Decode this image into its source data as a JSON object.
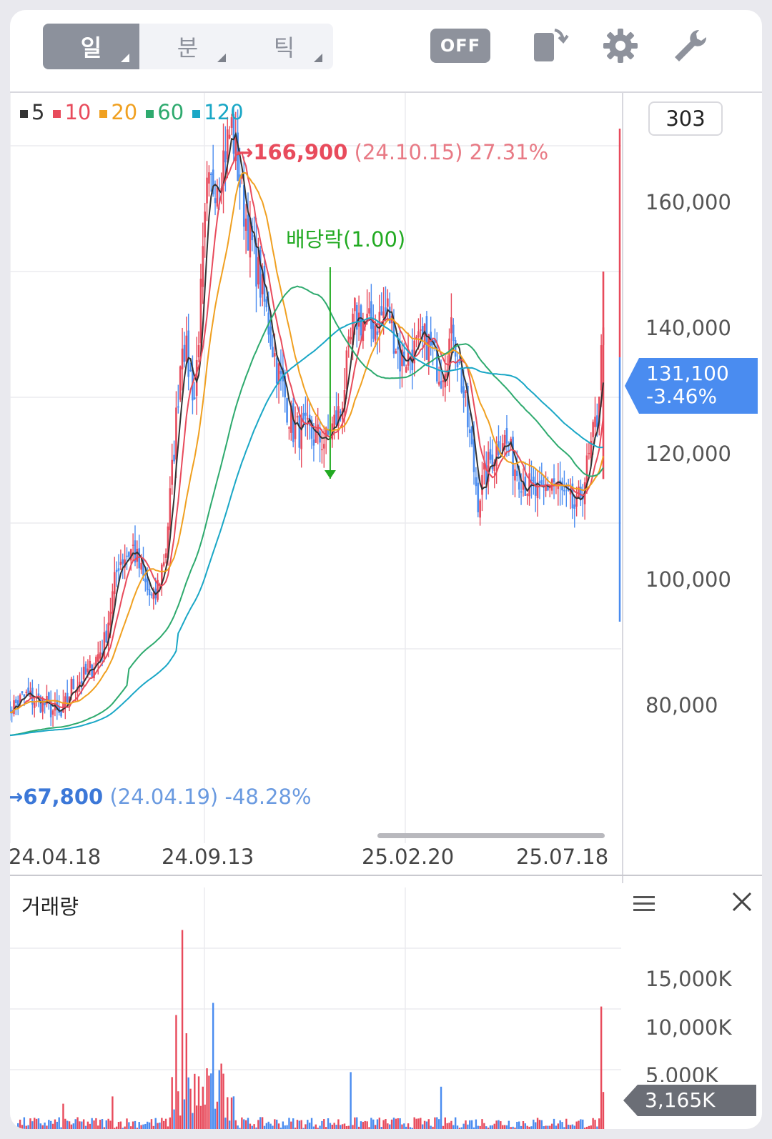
{
  "toolbar": {
    "periods": [
      {
        "label": "일",
        "active": true
      },
      {
        "label": "분",
        "active": false
      },
      {
        "label": "틱",
        "active": false
      }
    ],
    "off_label": "OFF",
    "icons": [
      "rotate-screen-icon",
      "gear-icon",
      "wrench-icon"
    ]
  },
  "legend": [
    {
      "label": "5",
      "color": "#333333"
    },
    {
      "label": "10",
      "color": "#e84b5c"
    },
    {
      "label": "20",
      "color": "#f0a020"
    },
    {
      "label": "60",
      "color": "#2eaa6e"
    },
    {
      "label": "120",
      "color": "#1aa7c6"
    }
  ],
  "count": "303",
  "annotations": {
    "high": {
      "arrow": "→",
      "value": "166,900",
      "date": "(24.10.15)",
      "pct": "27.31%"
    },
    "low": {
      "arrow": "→",
      "value": "67,800",
      "date": "(24.04.19)",
      "pct": "-48.28%"
    },
    "dividend": "배당락(1.00)"
  },
  "current": {
    "price": "131,100",
    "change": "-3.46%"
  },
  "y_ticks": [
    "160,000",
    "140,000",
    "120,000",
    "100,000",
    "80,000"
  ],
  "x_ticks": [
    "24.04.18",
    "24.09.13",
    "25.02.20",
    "25.07.18"
  ],
  "volume": {
    "title": "거래량",
    "ticks": [
      "15,000K",
      "10,000K",
      "5,000K"
    ],
    "current": "3,165K"
  },
  "colors": {
    "up": "#e84b5c",
    "down": "#4a8cf0",
    "grid": "#ebebef",
    "dividend": "#22aa22"
  },
  "chart_data": {
    "type": "candlestick",
    "ylim": [
      60000,
      175000
    ],
    "ma_periods": [
      5,
      10,
      20,
      60,
      120
    ],
    "x_dates": [
      "24.04.18",
      "24.09.13",
      "25.02.20",
      "25.07.18"
    ],
    "price_anchors": [
      [
        0,
        70000
      ],
      [
        10,
        72500
      ],
      [
        20,
        71000
      ],
      [
        27,
        69000
      ],
      [
        32,
        74000
      ],
      [
        40,
        76000
      ],
      [
        48,
        81000
      ],
      [
        55,
        94000
      ],
      [
        62,
        96000
      ],
      [
        68,
        90000
      ],
      [
        72,
        87000
      ],
      [
        78,
        96000
      ],
      [
        82,
        112000
      ],
      [
        86,
        130000
      ],
      [
        92,
        120000
      ],
      [
        98,
        152000
      ],
      [
        104,
        156000
      ],
      [
        110,
        163000
      ],
      [
        116,
        150000
      ],
      [
        124,
        138000
      ],
      [
        132,
        125000
      ],
      [
        140,
        115000
      ],
      [
        148,
        114000
      ],
      [
        156,
        113000
      ],
      [
        163,
        118000
      ],
      [
        170,
        133000
      ],
      [
        178,
        131000
      ],
      [
        186,
        134000
      ],
      [
        192,
        126000
      ],
      [
        198,
        127000
      ],
      [
        205,
        129000
      ],
      [
        212,
        124000
      ],
      [
        218,
        131000
      ],
      [
        224,
        118000
      ],
      [
        230,
        104000
      ],
      [
        236,
        110000
      ],
      [
        242,
        114000
      ],
      [
        248,
        109000
      ],
      [
        254,
        106000
      ],
      [
        260,
        104000
      ],
      [
        266,
        107000
      ],
      [
        272,
        104000
      ],
      [
        278,
        102000
      ],
      [
        284,
        110000
      ],
      [
        288,
        117000
      ],
      [
        291,
        131100
      ]
    ],
    "volume_spikes": [
      [
        28,
        2200
      ],
      [
        52,
        2800
      ],
      [
        83,
        9500
      ],
      [
        86,
        16500
      ],
      [
        88,
        8000
      ],
      [
        101,
        10500
      ],
      [
        105,
        5500
      ],
      [
        168,
        4800
      ],
      [
        212,
        3600
      ],
      [
        290,
        10200
      ],
      [
        291,
        3165
      ]
    ],
    "vol_max": 20000
  }
}
